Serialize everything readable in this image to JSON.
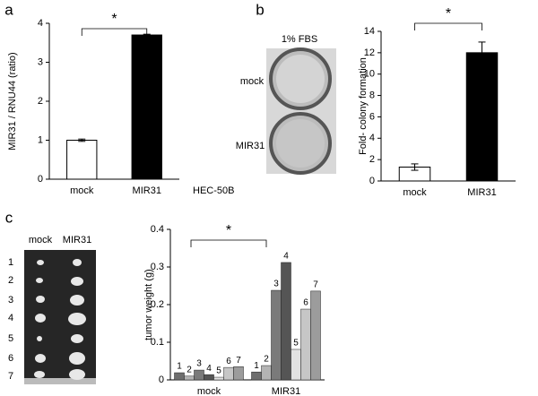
{
  "chart_data": [
    {
      "panel": "a",
      "type": "bar",
      "categories": [
        "mock",
        "MIR31"
      ],
      "values": [
        1.0,
        3.7
      ],
      "errors": [
        0.03,
        0.02
      ],
      "colors": [
        "#ffffff",
        "#000000"
      ],
      "ylabel": "MIR31 / RNU44 (ratio)",
      "ylim": [
        0,
        4
      ],
      "yticks": [
        0,
        1,
        2,
        3,
        4
      ],
      "annotation": "*",
      "cell_line": "HEC-50B"
    },
    {
      "panel": "b",
      "type": "bar",
      "categories": [
        "mock",
        "MIR31"
      ],
      "values": [
        1.3,
        12.0
      ],
      "errors": [
        0.3,
        1.0
      ],
      "colors": [
        "#ffffff",
        "#000000"
      ],
      "ylabel": "Fold- colony formation",
      "ylim": [
        0,
        14
      ],
      "yticks": [
        0,
        2,
        4,
        6,
        8,
        10,
        12,
        14
      ],
      "annotation": "*"
    },
    {
      "panel": "c",
      "type": "grouped_bar",
      "categories": [
        "mock",
        "MIR31"
      ],
      "series": [
        {
          "name": "1",
          "color": "#6e6e6e",
          "values": [
            0.019,
            0.021
          ]
        },
        {
          "name": "2",
          "color": "#b4b4b4",
          "values": [
            0.01,
            0.038
          ]
        },
        {
          "name": "3",
          "color": "#7a7a7a",
          "values": [
            0.026,
            0.238
          ]
        },
        {
          "name": "4",
          "color": "#555555",
          "values": [
            0.014,
            0.312
          ]
        },
        {
          "name": "5",
          "color": "#e2e2e2",
          "values": [
            0.007,
            0.081
          ]
        },
        {
          "name": "6",
          "color": "#c6c6c6",
          "values": [
            0.033,
            0.188
          ]
        },
        {
          "name": "7",
          "color": "#9c9c9c",
          "values": [
            0.035,
            0.236
          ]
        }
      ],
      "ylabel": "tumor weight (g)",
      "ylim": [
        0,
        0.4
      ],
      "yticks": [
        0,
        0.1,
        0.2,
        0.3,
        0.4
      ],
      "annotation": "*"
    }
  ],
  "images": [
    {
      "title": "1% FBS",
      "labels": [
        "mock",
        "MIR31"
      ]
    },
    {
      "columns": [
        "mock",
        "MIR31"
      ],
      "rows": [
        "1",
        "2",
        "3",
        "4",
        "5",
        "6",
        "7"
      ]
    }
  ]
}
